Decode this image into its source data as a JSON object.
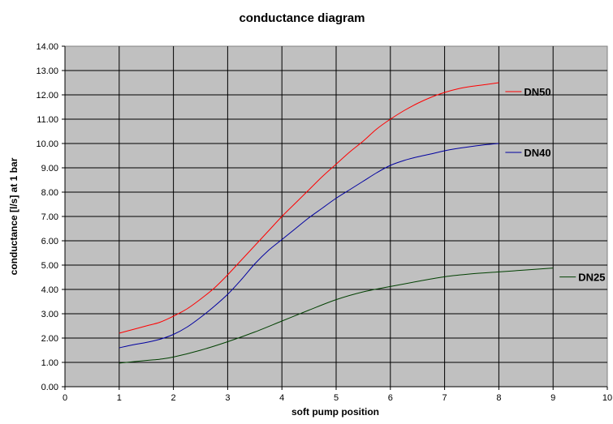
{
  "chart_data": {
    "type": "line",
    "title": "conductance diagram",
    "xlabel": "soft pump position",
    "ylabel": "conductance [l/s] at 1 bar",
    "xlim": [
      0,
      10
    ],
    "ylim": [
      0,
      14
    ],
    "x_ticks": [
      "0",
      "1",
      "2",
      "3",
      "4",
      "5",
      "6",
      "7",
      "8",
      "9",
      "10"
    ],
    "y_ticks": [
      "0.00",
      "1.00",
      "2.00",
      "3.00",
      "4.00",
      "5.00",
      "6.00",
      "7.00",
      "8.00",
      "9.00",
      "10.00",
      "11.00",
      "12.00",
      "13.00",
      "14.00"
    ],
    "grid": true,
    "plot_background": "#c0c0c0",
    "legend_placement": "inline-right",
    "series": [
      {
        "name": "DN50",
        "color": "#ff0000",
        "x": [
          1,
          1.25,
          1.5,
          1.75,
          2,
          2.25,
          2.5,
          2.75,
          3,
          3.25,
          3.5,
          3.75,
          4,
          4.25,
          4.5,
          4.75,
          5,
          5.25,
          5.5,
          5.75,
          6,
          6.25,
          6.5,
          6.75,
          7,
          7.25,
          7.5,
          7.75,
          8
        ],
        "y": [
          2.2,
          2.35,
          2.5,
          2.65,
          2.9,
          3.2,
          3.6,
          4.05,
          4.6,
          5.2,
          5.8,
          6.4,
          7.0,
          7.55,
          8.1,
          8.65,
          9.15,
          9.65,
          10.1,
          10.6,
          11.0,
          11.35,
          11.65,
          11.9,
          12.1,
          12.25,
          12.35,
          12.42,
          12.5
        ]
      },
      {
        "name": "DN40",
        "color": "#0000a0",
        "x": [
          1,
          1.25,
          1.5,
          1.75,
          2,
          2.25,
          2.5,
          2.75,
          3,
          3.25,
          3.5,
          3.75,
          4,
          4.25,
          4.5,
          4.75,
          5,
          5.25,
          5.5,
          5.75,
          6,
          6.25,
          6.5,
          6.75,
          7,
          7.25,
          7.5,
          7.75,
          8
        ],
        "y": [
          1.6,
          1.72,
          1.82,
          1.95,
          2.15,
          2.45,
          2.85,
          3.3,
          3.8,
          4.4,
          5.05,
          5.6,
          6.05,
          6.5,
          6.95,
          7.35,
          7.75,
          8.1,
          8.45,
          8.8,
          9.1,
          9.3,
          9.45,
          9.57,
          9.7,
          9.8,
          9.88,
          9.95,
          10.0
        ]
      },
      {
        "name": "DN25",
        "color": "#004000",
        "x": [
          1,
          1.5,
          1.75,
          2,
          2.5,
          3,
          3.5,
          4,
          4.5,
          5,
          5.5,
          6,
          6.5,
          7,
          7.5,
          8,
          8.5,
          9
        ],
        "y": [
          0.97,
          1.08,
          1.13,
          1.22,
          1.5,
          1.85,
          2.25,
          2.7,
          3.15,
          3.58,
          3.9,
          4.12,
          4.33,
          4.52,
          4.64,
          4.72,
          4.8,
          4.88
        ]
      }
    ]
  }
}
